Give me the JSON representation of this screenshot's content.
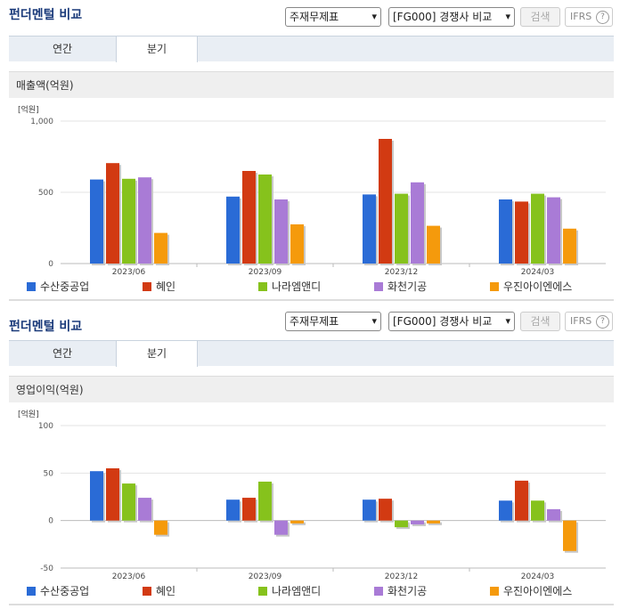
{
  "sections": [
    {
      "title": "펀더멘털 비교",
      "select1": "주재무제표",
      "select2": "[FG000] 경쟁사 비교",
      "search_label": "검색",
      "ifrs_label": "IFRS",
      "ifrs_help": "?",
      "tabs": [
        "연간",
        "분기"
      ],
      "active_tab": 1,
      "chart_header": "매출액(억원)"
    },
    {
      "title": "펀더멘털 비교",
      "select1": "주재무제표",
      "select2": "[FG000] 경쟁사 비교",
      "search_label": "검색",
      "ifrs_label": "IFRS",
      "ifrs_help": "?",
      "tabs": [
        "연간",
        "분기"
      ],
      "active_tab": 1,
      "chart_header": "영업이익(억원)"
    }
  ],
  "colors": [
    "#2a6bd6",
    "#d23a12",
    "#86c21c",
    "#a97bd6",
    "#f59a0c"
  ],
  "chart_data": [
    {
      "type": "bar",
      "title": "매출액(억원)",
      "unit_label": "[억원]",
      "categories": [
        "2023/06",
        "2023/09",
        "2023/12",
        "2024/03"
      ],
      "yticks": [
        0,
        500,
        1000
      ],
      "ylim": [
        0,
        1000
      ],
      "grid": true,
      "legend_position": "bottom",
      "series": [
        {
          "name": "수산중공업",
          "values": [
            590,
            470,
            485,
            450
          ]
        },
        {
          "name": "혜인",
          "values": [
            705,
            650,
            875,
            435
          ]
        },
        {
          "name": "나라엠앤디",
          "values": [
            595,
            625,
            490,
            490
          ]
        },
        {
          "name": "화천기공",
          "values": [
            605,
            450,
            570,
            465
          ]
        },
        {
          "name": "우진아이엔에스",
          "values": [
            215,
            275,
            265,
            245
          ]
        }
      ]
    },
    {
      "type": "bar",
      "title": "영업이익(억원)",
      "unit_label": "[억원]",
      "categories": [
        "2023/06",
        "2023/09",
        "2023/12",
        "2024/03"
      ],
      "yticks": [
        -50,
        0,
        50,
        100
      ],
      "ylim": [
        -50,
        100
      ],
      "grid": true,
      "legend_position": "bottom",
      "series": [
        {
          "name": "수산중공업",
          "values": [
            52,
            22,
            22,
            21
          ]
        },
        {
          "name": "혜인",
          "values": [
            55,
            24,
            23,
            42
          ]
        },
        {
          "name": "나라엠앤디",
          "values": [
            39,
            41,
            -7,
            21
          ]
        },
        {
          "name": "화천기공",
          "values": [
            24,
            -15,
            -4,
            12
          ]
        },
        {
          "name": "우진아이엔에스",
          "values": [
            -15,
            -3,
            -3,
            -32
          ]
        }
      ]
    }
  ]
}
